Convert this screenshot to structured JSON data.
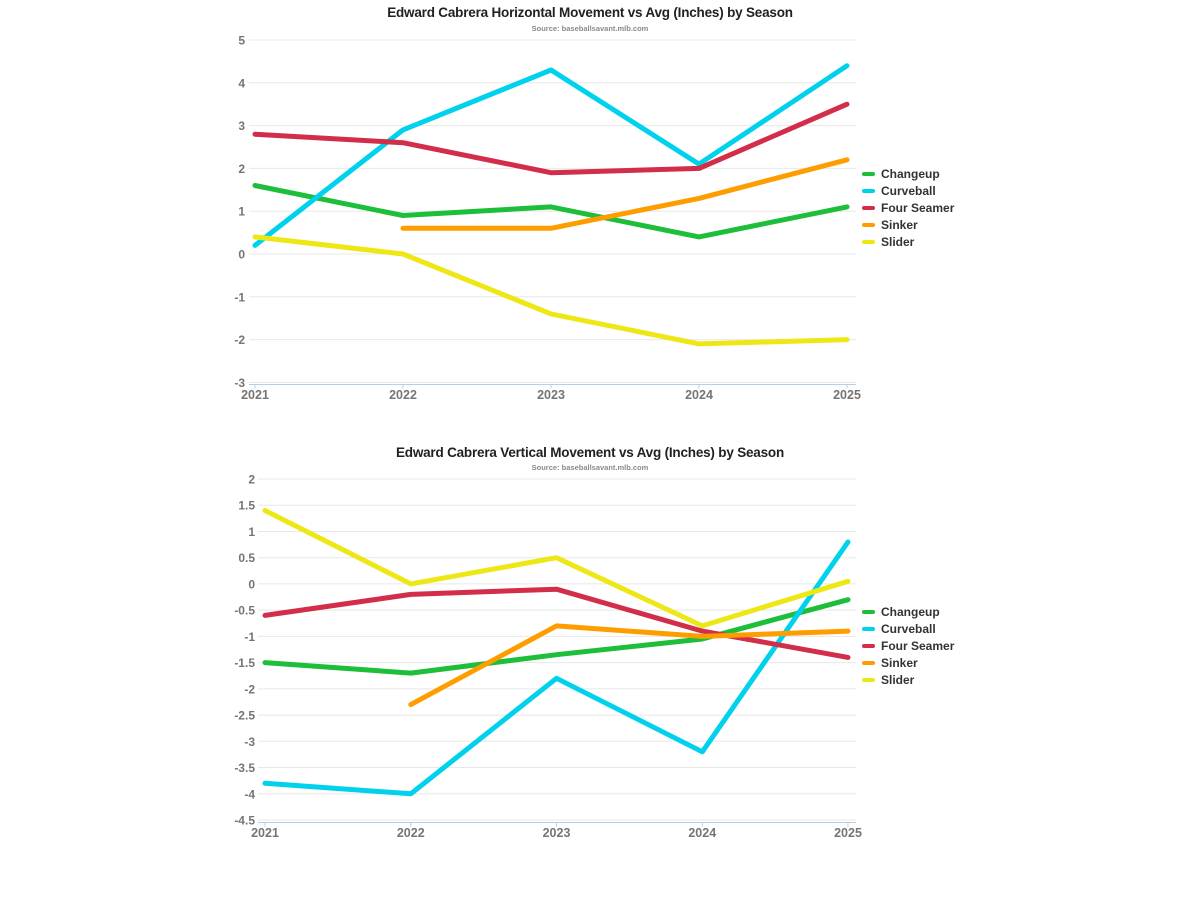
{
  "page": {
    "background": "#ffffff"
  },
  "style": {
    "grid_color": "#e8e8e8",
    "axis_line_color": "#b3d1e6",
    "tick_label_color": "#757575",
    "title_color": "#212121",
    "subtitle_color": "#8a8a8a",
    "legend_text_color": "#333333"
  },
  "chart_data": [
    {
      "id": "horizontal-movement",
      "type": "line",
      "title": "Edward Cabrera Horizontal Movement vs Avg (Inches) by Season",
      "subtitle": "Source: baseballsavant.mlb.com",
      "xlabel": "",
      "ylabel": "",
      "categories": [
        "2021",
        "2022",
        "2023",
        "2024",
        "2025"
      ],
      "ylim": [
        -3,
        5
      ],
      "yticks": [
        "5",
        "4",
        "3",
        "2",
        "1",
        "0",
        "-1",
        "-2",
        "-3"
      ],
      "grid": true,
      "legend_position": "right",
      "series": [
        {
          "name": "Changeup",
          "color": "#1DBE3A",
          "values": [
            1.6,
            0.9,
            1.1,
            0.4,
            1.1
          ]
        },
        {
          "name": "Curveball",
          "color": "#00D1ED",
          "values": [
            0.2,
            2.9,
            4.3,
            2.1,
            4.4
          ]
        },
        {
          "name": "Four Seamer",
          "color": "#D22D49",
          "values": [
            2.8,
            2.6,
            1.9,
            2.0,
            3.5
          ]
        },
        {
          "name": "Sinker",
          "color": "#FE9D00",
          "values": [
            null,
            0.6,
            0.6,
            1.3,
            2.2
          ]
        },
        {
          "name": "Slider",
          "color": "#EEE716",
          "values": [
            0.4,
            0.0,
            -1.4,
            -2.1,
            -2.0
          ]
        }
      ]
    },
    {
      "id": "vertical-movement",
      "type": "line",
      "title": "Edward Cabrera Vertical Movement vs Avg (Inches) by Season",
      "subtitle": "Source: baseballsavant.mlb.com",
      "xlabel": "",
      "ylabel": "",
      "categories": [
        "2021",
        "2022",
        "2023",
        "2024",
        "2025"
      ],
      "ylim": [
        -4.5,
        2
      ],
      "yticks": [
        "2",
        "1.5",
        "1",
        "0.5",
        "0",
        "-0.5",
        "-1",
        "-1.5",
        "-2",
        "-2.5",
        "-3",
        "-3.5",
        "-4",
        "-4.5"
      ],
      "grid": true,
      "legend_position": "right",
      "series": [
        {
          "name": "Changeup",
          "color": "#1DBE3A",
          "values": [
            -1.5,
            -1.7,
            -1.35,
            -1.05,
            -0.3
          ]
        },
        {
          "name": "Curveball",
          "color": "#00D1ED",
          "values": [
            -3.8,
            -4.0,
            -1.8,
            -3.2,
            0.8
          ]
        },
        {
          "name": "Four Seamer",
          "color": "#D22D49",
          "values": [
            -0.6,
            -0.2,
            -0.1,
            -0.9,
            -1.4
          ]
        },
        {
          "name": "Sinker",
          "color": "#FE9D00",
          "values": [
            null,
            -2.3,
            -0.8,
            -1.0,
            -0.9
          ]
        },
        {
          "name": "Slider",
          "color": "#EEE716",
          "values": [
            1.4,
            0.0,
            0.5,
            -0.8,
            0.05
          ]
        }
      ]
    }
  ]
}
